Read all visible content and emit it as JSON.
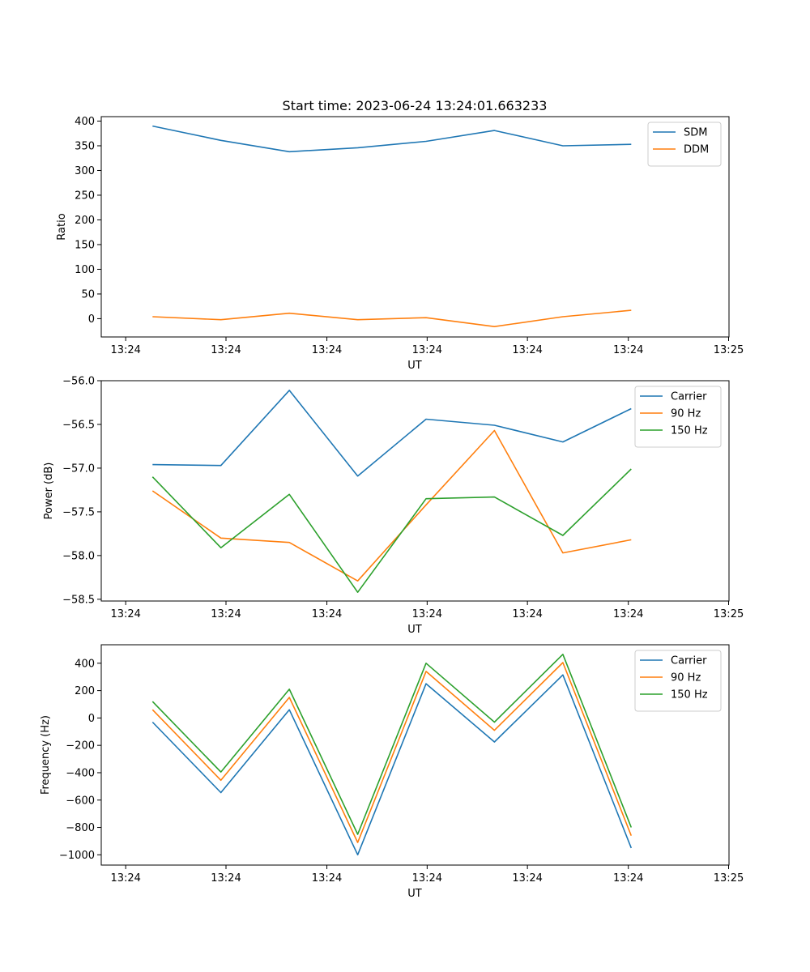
{
  "title": "Start time: 2023-06-24 13:24:01.663233",
  "x_tick_labels": [
    "13:24",
    "13:24",
    "13:24",
    "13:24",
    "13:24",
    "13:24",
    "13:25"
  ],
  "colors": {
    "blue": "#1f77b4",
    "orange": "#ff7f0e",
    "green": "#2ca02c"
  },
  "chart_data": [
    {
      "type": "line",
      "xlabel": "UT",
      "ylabel": "Ratio",
      "x": [
        1,
        2,
        3,
        4,
        5,
        6,
        7,
        8
      ],
      "xlim": [
        0.25,
        9.43
      ],
      "ylim": [
        -37,
        409
      ],
      "yticks": [
        0,
        50,
        100,
        150,
        200,
        250,
        300,
        350,
        400
      ],
      "legend_position": "top-right",
      "series": [
        {
          "name": "SDM",
          "color": "#1f77b4",
          "values": [
            390,
            361,
            338,
            346,
            359,
            381,
            350,
            353
          ]
        },
        {
          "name": "DDM",
          "color": "#ff7f0e",
          "values": [
            4,
            -2,
            11,
            -2,
            2,
            -16,
            4,
            17
          ]
        }
      ]
    },
    {
      "type": "line",
      "xlabel": "UT",
      "ylabel": "Power (dB)",
      "x": [
        1,
        2,
        3,
        4,
        5,
        6,
        7,
        8
      ],
      "xlim": [
        0.25,
        9.43
      ],
      "ylim": [
        -58.52,
        -56.0
      ],
      "yticks": [
        -56.0,
        -56.5,
        -57.0,
        -57.5,
        -58.0,
        -58.5
      ],
      "ytick_labels": [
        "−56.0",
        "−56.5",
        "−57.0",
        "−57.5",
        "−58.0",
        "−58.5"
      ],
      "legend_position": "top-right",
      "series": [
        {
          "name": "Carrier",
          "color": "#1f77b4",
          "values": [
            -56.96,
            -56.97,
            -56.11,
            -57.09,
            -56.44,
            -56.51,
            -56.7,
            -56.32
          ]
        },
        {
          "name": "90 Hz",
          "color": "#ff7f0e",
          "values": [
            -57.26,
            -57.8,
            -57.85,
            -58.29,
            -57.42,
            -56.57,
            -57.97,
            -57.82
          ]
        },
        {
          "name": "150 Hz",
          "color": "#2ca02c",
          "values": [
            -57.1,
            -57.91,
            -57.3,
            -58.42,
            -57.35,
            -57.33,
            -57.77,
            -57.01
          ]
        }
      ]
    },
    {
      "type": "line",
      "xlabel": "UT",
      "ylabel": "Frequency (Hz)",
      "x": [
        1,
        2,
        3,
        4,
        5,
        6,
        7,
        8
      ],
      "xlim": [
        0.25,
        9.43
      ],
      "ylim": [
        -1075,
        535
      ],
      "yticks": [
        400,
        200,
        0,
        -200,
        -400,
        -600,
        -800,
        -1000
      ],
      "ytick_labels": [
        "400",
        "200",
        "0",
        "−200",
        "−400",
        "−600",
        "−800",
        "−1000"
      ],
      "legend_position": "top-right",
      "series": [
        {
          "name": "Carrier",
          "color": "#1f77b4",
          "values": [
            -30,
            -545,
            60,
            -1000,
            250,
            -175,
            315,
            -950
          ]
        },
        {
          "name": "90 Hz",
          "color": "#ff7f0e",
          "values": [
            60,
            -455,
            150,
            -910,
            340,
            -90,
            405,
            -860
          ]
        },
        {
          "name": "150 Hz",
          "color": "#2ca02c",
          "values": [
            120,
            -395,
            210,
            -850,
            400,
            -30,
            465,
            -800
          ]
        }
      ]
    }
  ]
}
